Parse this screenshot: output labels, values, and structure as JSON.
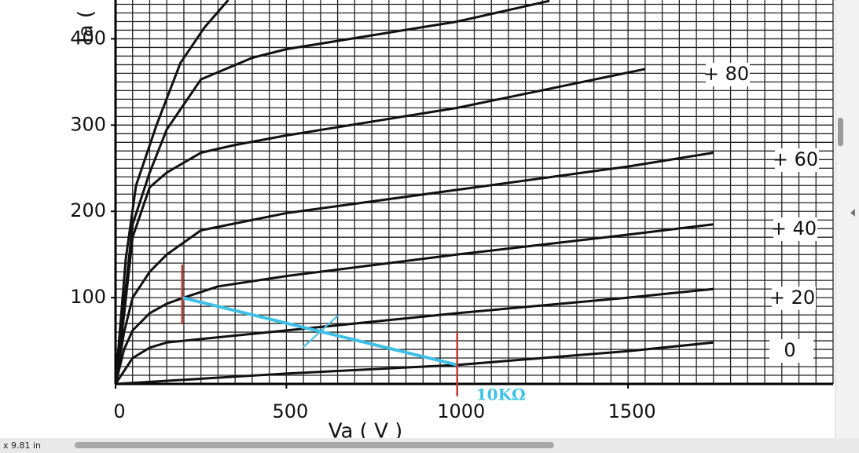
{
  "chart_data": {
    "type": "line",
    "y_label": "Ia (",
    "x_label": "Va ( V )",
    "xlim": [
      0,
      2100
    ],
    "ylim": [
      0,
      445
    ],
    "xticks": [
      0,
      500,
      1000,
      1500
    ],
    "yticks": [
      100,
      200,
      300,
      400
    ],
    "xgrid": [
      0,
      50,
      100,
      150,
      200,
      250,
      300,
      350,
      400,
      450,
      500,
      550,
      600,
      650,
      700,
      750,
      800,
      850,
      900,
      950,
      1000,
      1050,
      1100,
      1150,
      1200,
      1250,
      1300,
      1350,
      1400,
      1450,
      1500,
      1550,
      1600,
      1650,
      1700,
      1750,
      1800,
      1850,
      1900,
      1950,
      2000,
      2050,
      2100
    ],
    "ygrid": [
      0,
      10,
      20,
      30,
      40,
      50,
      60,
      70,
      80,
      90,
      100,
      110,
      120,
      130,
      140,
      150,
      160,
      170,
      180,
      190,
      200,
      210,
      220,
      230,
      240,
      250,
      260,
      270,
      280,
      290,
      300,
      310,
      320,
      330,
      340,
      350,
      360,
      370,
      380,
      390,
      400,
      410,
      420,
      430,
      440
    ],
    "color": "#111111",
    "series": [
      {
        "name": "0",
        "x": [
          0,
          250,
          500,
          1000,
          1500,
          1750
        ],
        "values": [
          0,
          6,
          12,
          22,
          38,
          48
        ]
      },
      {
        "name": "+ 20",
        "x": [
          0,
          50,
          100,
          150,
          200,
          500,
          1000,
          1500,
          1750
        ],
        "values": [
          0,
          30,
          42,
          48,
          50,
          62,
          82,
          100,
          110
        ]
      },
      {
        "name": "+ 40",
        "x": [
          0,
          25,
          50,
          100,
          150,
          200,
          300,
          500,
          1000,
          1500,
          1750
        ],
        "values": [
          0,
          40,
          62,
          82,
          93,
          100,
          113,
          125,
          150,
          173,
          185
        ]
      },
      {
        "name": "+ 60",
        "x": [
          0,
          25,
          50,
          100,
          150,
          250,
          500,
          1000,
          1500,
          1750
        ],
        "values": [
          0,
          60,
          100,
          130,
          150,
          178,
          198,
          225,
          252,
          268
        ]
      },
      {
        "name": "+ 80",
        "x": [
          0,
          25,
          50,
          100,
          150,
          250,
          350,
          500,
          1000,
          1550
        ],
        "values": [
          0,
          80,
          170,
          228,
          245,
          268,
          277,
          288,
          320,
          365
        ]
      },
      {
        "name": null,
        "x": [
          0,
          50,
          100,
          150,
          250,
          400,
          500,
          1000,
          1270
        ],
        "values": [
          0,
          185,
          245,
          295,
          353,
          378,
          388,
          420,
          444
        ]
      },
      {
        "name": null,
        "x": [
          0,
          30,
          60,
          120,
          190,
          260,
          330
        ],
        "values": [
          0,
          145,
          230,
          300,
          372,
          413,
          445
        ]
      }
    ],
    "load_line": {
      "label": "10KΩ",
      "color": "#3ec0e6",
      "marker_color": "#c0392b",
      "x": [
        195,
        1000
      ],
      "values": [
        100,
        22
      ]
    }
  },
  "viewer": {
    "page_size": "x 9.81 in"
  }
}
